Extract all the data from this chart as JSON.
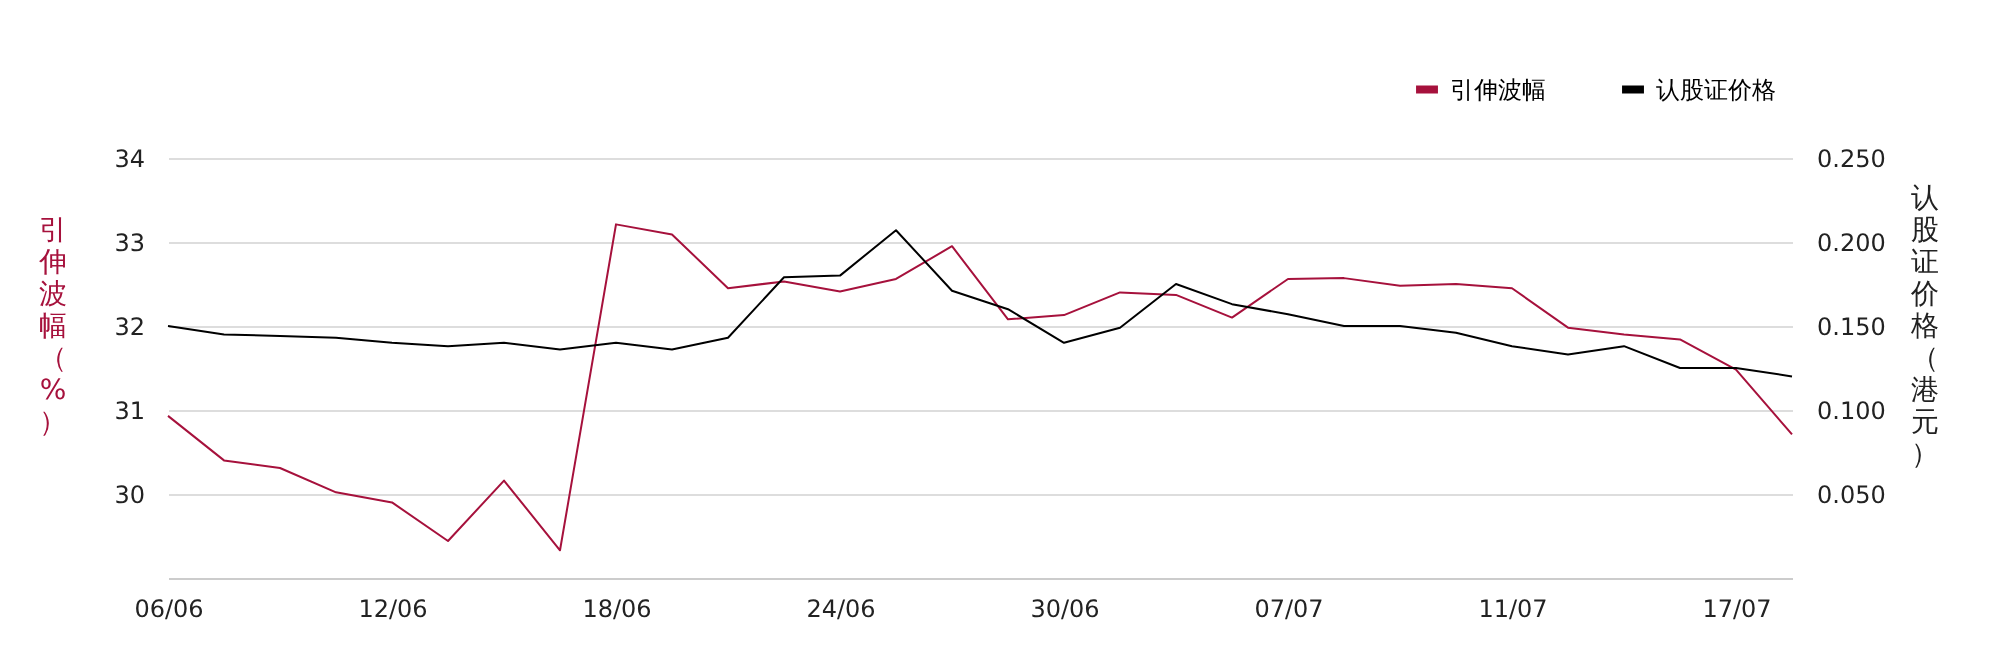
{
  "chart_data": {
    "type": "line",
    "xlabel": null,
    "ylabel": "引伸波幅（%）",
    "y2label": "认股证价格（港元）",
    "categories": [
      "06/06",
      null,
      null,
      null,
      "12/06",
      null,
      null,
      null,
      "18/06",
      null,
      null,
      null,
      "24/06",
      null,
      null,
      null,
      "30/06",
      null,
      null,
      null,
      "07/07",
      null,
      null,
      null,
      "11/07",
      null,
      null,
      null,
      "17/07",
      null
    ],
    "series": [
      {
        "name": "引伸波幅",
        "color": "#a6113c",
        "values": [
          30.93,
          30.4,
          30.31,
          30.02,
          29.9,
          29.44,
          30.16,
          29.33,
          33.21,
          33.09,
          32.45,
          32.53,
          32.41,
          32.56,
          32.95,
          32.08,
          32.13,
          32.4,
          32.37,
          32.1,
          32.56,
          32.57,
          32.48,
          32.5,
          32.45,
          31.98,
          31.9,
          31.84,
          31.48,
          30.71
        ]
      },
      {
        "name": "认股证价格",
        "color": "#000000",
        "axis": "y2",
        "values": [
          0.15,
          0.145,
          0.144,
          0.143,
          0.14,
          0.138,
          0.14,
          0.136,
          0.14,
          0.136,
          0.143,
          0.179,
          0.18,
          0.207,
          0.171,
          0.16,
          0.14,
          0.149,
          0.175,
          0.163,
          0.157,
          0.15,
          0.15,
          0.146,
          0.138,
          0.133,
          0.138,
          0.125,
          0.125,
          0.12
        ]
      }
    ],
    "ylim": [
      29,
      34
    ],
    "yticks": [
      30,
      31,
      32,
      33,
      34
    ],
    "y2lim": [
      0,
      0.25
    ],
    "y2ticks": [
      {
        "value": 0.05,
        "label": "0.050"
      },
      {
        "value": 0.1,
        "label": "0.100"
      },
      {
        "value": 0.15,
        "label": "0.150"
      },
      {
        "value": 0.2,
        "label": "0.200"
      },
      {
        "value": 0.25,
        "label": "0.250"
      }
    ],
    "grid": "y",
    "legend": "top right",
    "marker": "none",
    "line_style": "solid"
  }
}
